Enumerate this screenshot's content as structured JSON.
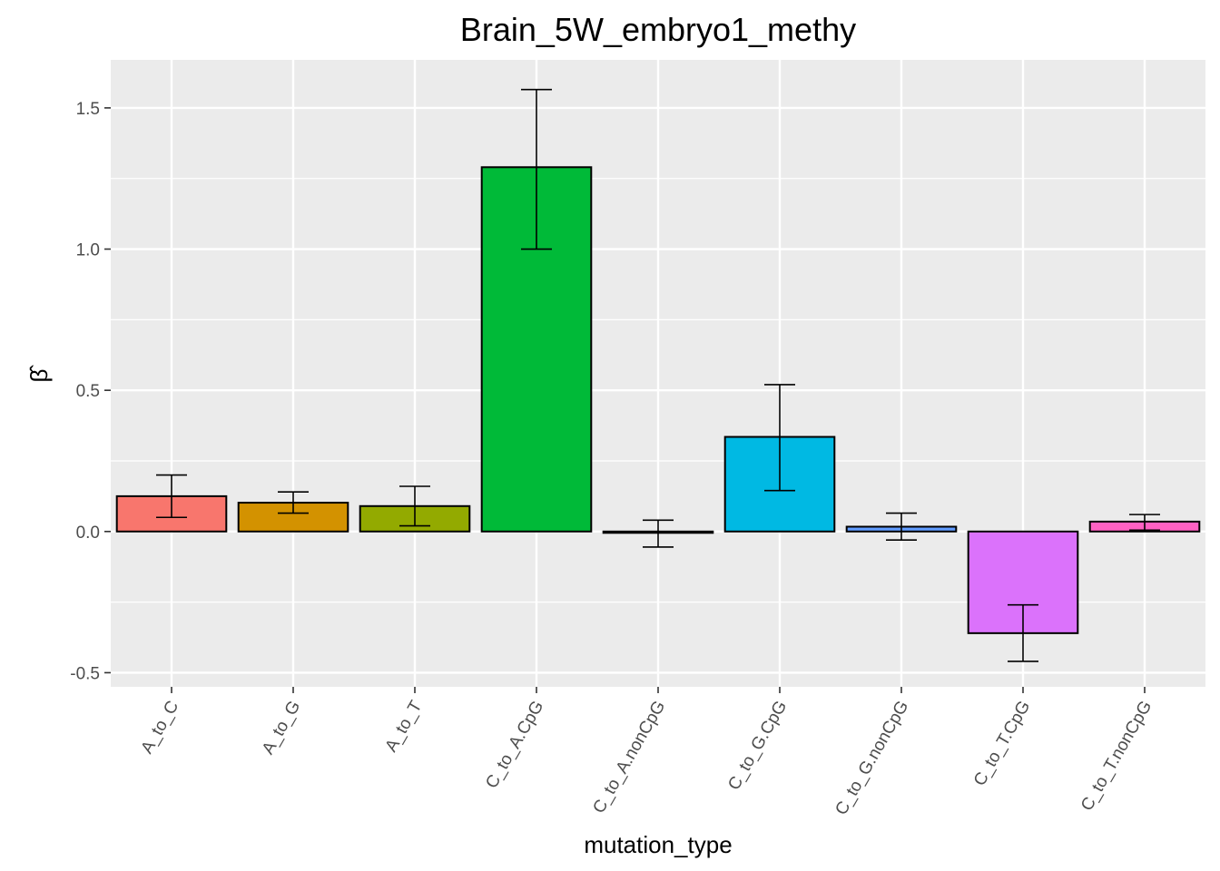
{
  "chart_data": {
    "type": "bar",
    "title": "Brain_5W_embryo1_methy",
    "xlabel": "mutation_type",
    "ylabel": "β̂",
    "categories": [
      "A_to_C",
      "A_to_G",
      "A_to_T",
      "C_to_A.CpG",
      "C_to_A.nonCpG",
      "C_to_G.CpG",
      "C_to_G.nonCpG",
      "C_to_T.CpG",
      "C_to_T.nonCpG"
    ],
    "values": [
      0.125,
      0.102,
      0.09,
      1.29,
      -0.003,
      0.335,
      0.017,
      -0.36,
      0.035
    ],
    "error_low": [
      0.05,
      0.065,
      0.02,
      1.0,
      -0.055,
      0.145,
      -0.03,
      -0.46,
      0.005
    ],
    "error_high": [
      0.2,
      0.14,
      0.16,
      1.565,
      0.04,
      0.52,
      0.065,
      -0.26,
      0.06
    ],
    "colors": [
      "#F8766D",
      "#D39200",
      "#93AA00",
      "#00BA38",
      "#00C19F",
      "#00B9E3",
      "#619CFF",
      "#DB72FB",
      "#FF61C3"
    ],
    "ylim": [
      -0.55,
      1.67
    ],
    "yticks": [
      -0.5,
      0.0,
      0.5,
      1.0,
      1.5
    ],
    "ytick_labels": [
      "-0.5",
      "0.0",
      "0.5",
      "1.0",
      "1.5"
    ],
    "grid": true,
    "legend": "none",
    "background": "#EBEBEB",
    "grid_color": "#FFFFFF"
  }
}
